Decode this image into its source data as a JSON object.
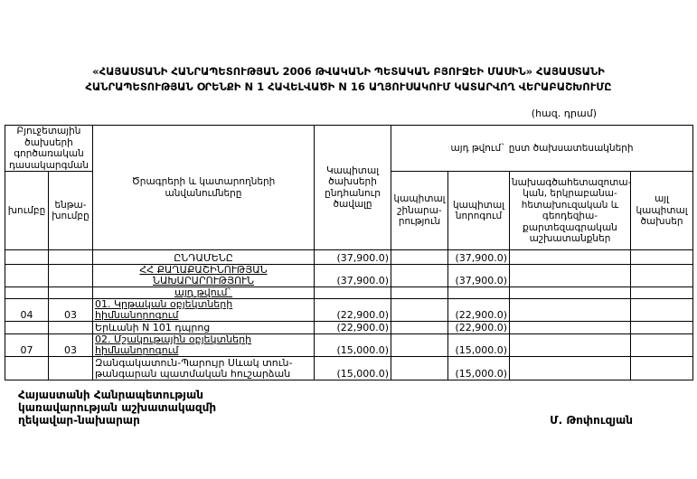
{
  "page": {
    "title_line1": "«ՀԱՅԱՍՏԱՆԻ ՀԱՆՐԱՊԵՏՈՒԹՅԱՆ 2006 ԹՎԱԿԱՆԻ ՊԵՏԱԿԱՆ ԲՅՈՒՋԵԻ ՄԱՍԻՆ» ՀԱՅԱՍՏԱՆԻ",
    "title_line2": "ՀԱՆՐԱՊԵՏՈՒԹՅԱՆ ՕՐԵՆՔԻ N 1 ՀԱՎԵԼՎԱԾԻ N 16 ԱՂՅՈՒՍԱԿՈՒՄ ԿԱՏԱՐՎՈՂ ՎԵՐԱԲԱՇԽՈՒՄԸ",
    "unit_note": "(հազ. դրամ)"
  },
  "table": {
    "headers": {
      "functional_classification": "Բյուջետային ծախսերի գործառական դասակարգման",
      "group": "խումբը",
      "subgroup": "ենթա-խումբը",
      "programs": "Ծրագրերի և կատարողների անվանումները",
      "capital_total": "Կապիտալ ծախսերի ընդհանուր ծավալը",
      "by_expense_type": "այդ թվում` ըստ ծախսատեսակների",
      "construction": "կապիտալ շինարա-րություն",
      "repair": "կապիտալ նորոգում",
      "survey": "նախագծահետազոտա-կան, երկրաբանա-հետախուզական և գեոդեզիա-քարտեզագրական աշխատանքներ",
      "other": "այլ կապիտալ ծախսեր"
    },
    "rows": [
      {
        "group": "",
        "subgroup": "",
        "name": "ԸՆԴԱՄԵՆԸ",
        "align": "center",
        "underline": false,
        "total": "(37,900.0)",
        "construction": "",
        "repair": "(37,900.0)",
        "survey": "",
        "other": ""
      },
      {
        "group": "",
        "subgroup": "",
        "name": "ՀՀ ՔԱՂԱՔԱՇԻՆՈՒԹՅԱՆ ՆԱԽԱՐԱՐՈՒԹՅՈՒՆ",
        "align": "center",
        "underline": true,
        "total": "(37,900.0)",
        "construction": "",
        "repair": "(37,900.0)",
        "survey": "",
        "other": ""
      },
      {
        "group": "",
        "subgroup": "",
        "name": "այդ թվում`",
        "align": "center",
        "underline": true,
        "total": "",
        "construction": "",
        "repair": "",
        "survey": "",
        "other": ""
      },
      {
        "group": "04",
        "subgroup": "03",
        "name": "01. Կրթական օբյեկտների հիմնանորոգում",
        "align": "left",
        "underline": true,
        "total": "(22,900.0)",
        "construction": "",
        "repair": "(22,900.0)",
        "survey": "",
        "other": ""
      },
      {
        "group": "",
        "subgroup": "",
        "name": "Երևանի N 101 դպրոց",
        "align": "left",
        "underline": false,
        "total": "(22,900.0)",
        "construction": "",
        "repair": "(22,900.0)",
        "survey": "",
        "other": ""
      },
      {
        "group": "07",
        "subgroup": "03",
        "name": "02. Մշակութային օբյեկտների հիմնանորոգում",
        "align": "left",
        "underline": true,
        "total": "(15,000.0)",
        "construction": "",
        "repair": "(15,000.0)",
        "survey": "",
        "other": ""
      },
      {
        "group": "",
        "subgroup": "",
        "name": "Զանգակատուն-Պարույր Սևակ տուն-թանգարան պատմական հուշարձան",
        "align": "left",
        "underline": false,
        "total": "(15,000.0)",
        "construction": "",
        "repair": "(15,000.0)",
        "survey": "",
        "other": ""
      }
    ]
  },
  "footer": {
    "left_block": "Հայաստանի Հանրապետության\nկառավարության աշխատակազմի\nղեկավար-նախարար",
    "signature": "Մ. Թոփուզյան"
  }
}
